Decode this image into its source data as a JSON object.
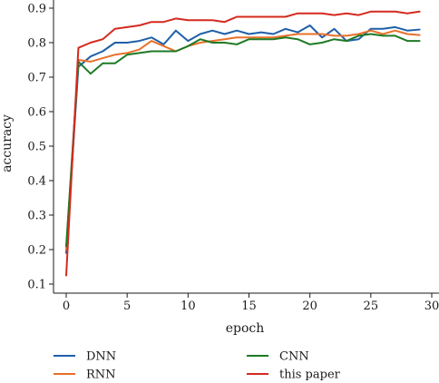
{
  "chart_data": {
    "type": "line",
    "title": "",
    "xlabel": "epoch",
    "ylabel": "accuracy",
    "xlim": [
      -1,
      30
    ],
    "ylim": [
      0.09,
      0.91
    ],
    "xticks": [
      0,
      5,
      10,
      15,
      20,
      25,
      30
    ],
    "xtick_labels": [
      "0",
      "5",
      "10",
      "15",
      "20",
      "25",
      "30"
    ],
    "yticks": [
      0.1,
      0.2,
      0.3,
      0.4,
      0.5,
      0.6,
      0.7,
      0.8,
      0.9
    ],
    "ytick_labels": [
      "0.1",
      "0.2",
      "0.3",
      "0.4",
      "0.5",
      "0.6",
      "0.7",
      "0.8",
      "0.9"
    ],
    "grid": false,
    "legend_position": "bottom",
    "x": [
      0,
      1,
      2,
      3,
      4,
      5,
      6,
      7,
      8,
      9,
      10,
      11,
      12,
      13,
      14,
      15,
      16,
      17,
      18,
      19,
      20,
      21,
      22,
      23,
      24,
      25,
      26,
      27,
      28,
      29
    ],
    "series": [
      {
        "name": "DNN",
        "color": "#1f5fa8",
        "values": [
          0.19,
          0.73,
          0.76,
          0.775,
          0.8,
          0.8,
          0.805,
          0.815,
          0.795,
          0.835,
          0.805,
          0.825,
          0.835,
          0.825,
          0.835,
          0.825,
          0.83,
          0.825,
          0.84,
          0.83,
          0.85,
          0.815,
          0.84,
          0.805,
          0.81,
          0.84,
          0.84,
          0.845,
          0.835,
          0.838
        ]
      },
      {
        "name": "RNN",
        "color": "#e8702a",
        "values": [
          0.2,
          0.75,
          0.745,
          0.755,
          0.765,
          0.77,
          0.78,
          0.805,
          0.79,
          0.775,
          0.79,
          0.8,
          0.805,
          0.81,
          0.815,
          0.815,
          0.815,
          0.815,
          0.82,
          0.825,
          0.825,
          0.825,
          0.82,
          0.82,
          0.825,
          0.835,
          0.825,
          0.835,
          0.825,
          0.822
        ]
      },
      {
        "name": "CNN",
        "color": "#1e7a25",
        "values": [
          0.21,
          0.745,
          0.71,
          0.74,
          0.74,
          0.765,
          0.77,
          0.775,
          0.775,
          0.775,
          0.79,
          0.81,
          0.8,
          0.8,
          0.795,
          0.81,
          0.81,
          0.81,
          0.815,
          0.81,
          0.795,
          0.8,
          0.81,
          0.805,
          0.82,
          0.825,
          0.82,
          0.82,
          0.805,
          0.805
        ]
      },
      {
        "name": "this paper",
        "color": "#d42a1e",
        "values": [
          0.125,
          0.785,
          0.8,
          0.81,
          0.84,
          0.845,
          0.85,
          0.86,
          0.86,
          0.87,
          0.865,
          0.865,
          0.865,
          0.86,
          0.875,
          0.875,
          0.875,
          0.875,
          0.875,
          0.885,
          0.885,
          0.885,
          0.88,
          0.885,
          0.88,
          0.89,
          0.89,
          0.89,
          0.885,
          0.89
        ]
      }
    ]
  }
}
